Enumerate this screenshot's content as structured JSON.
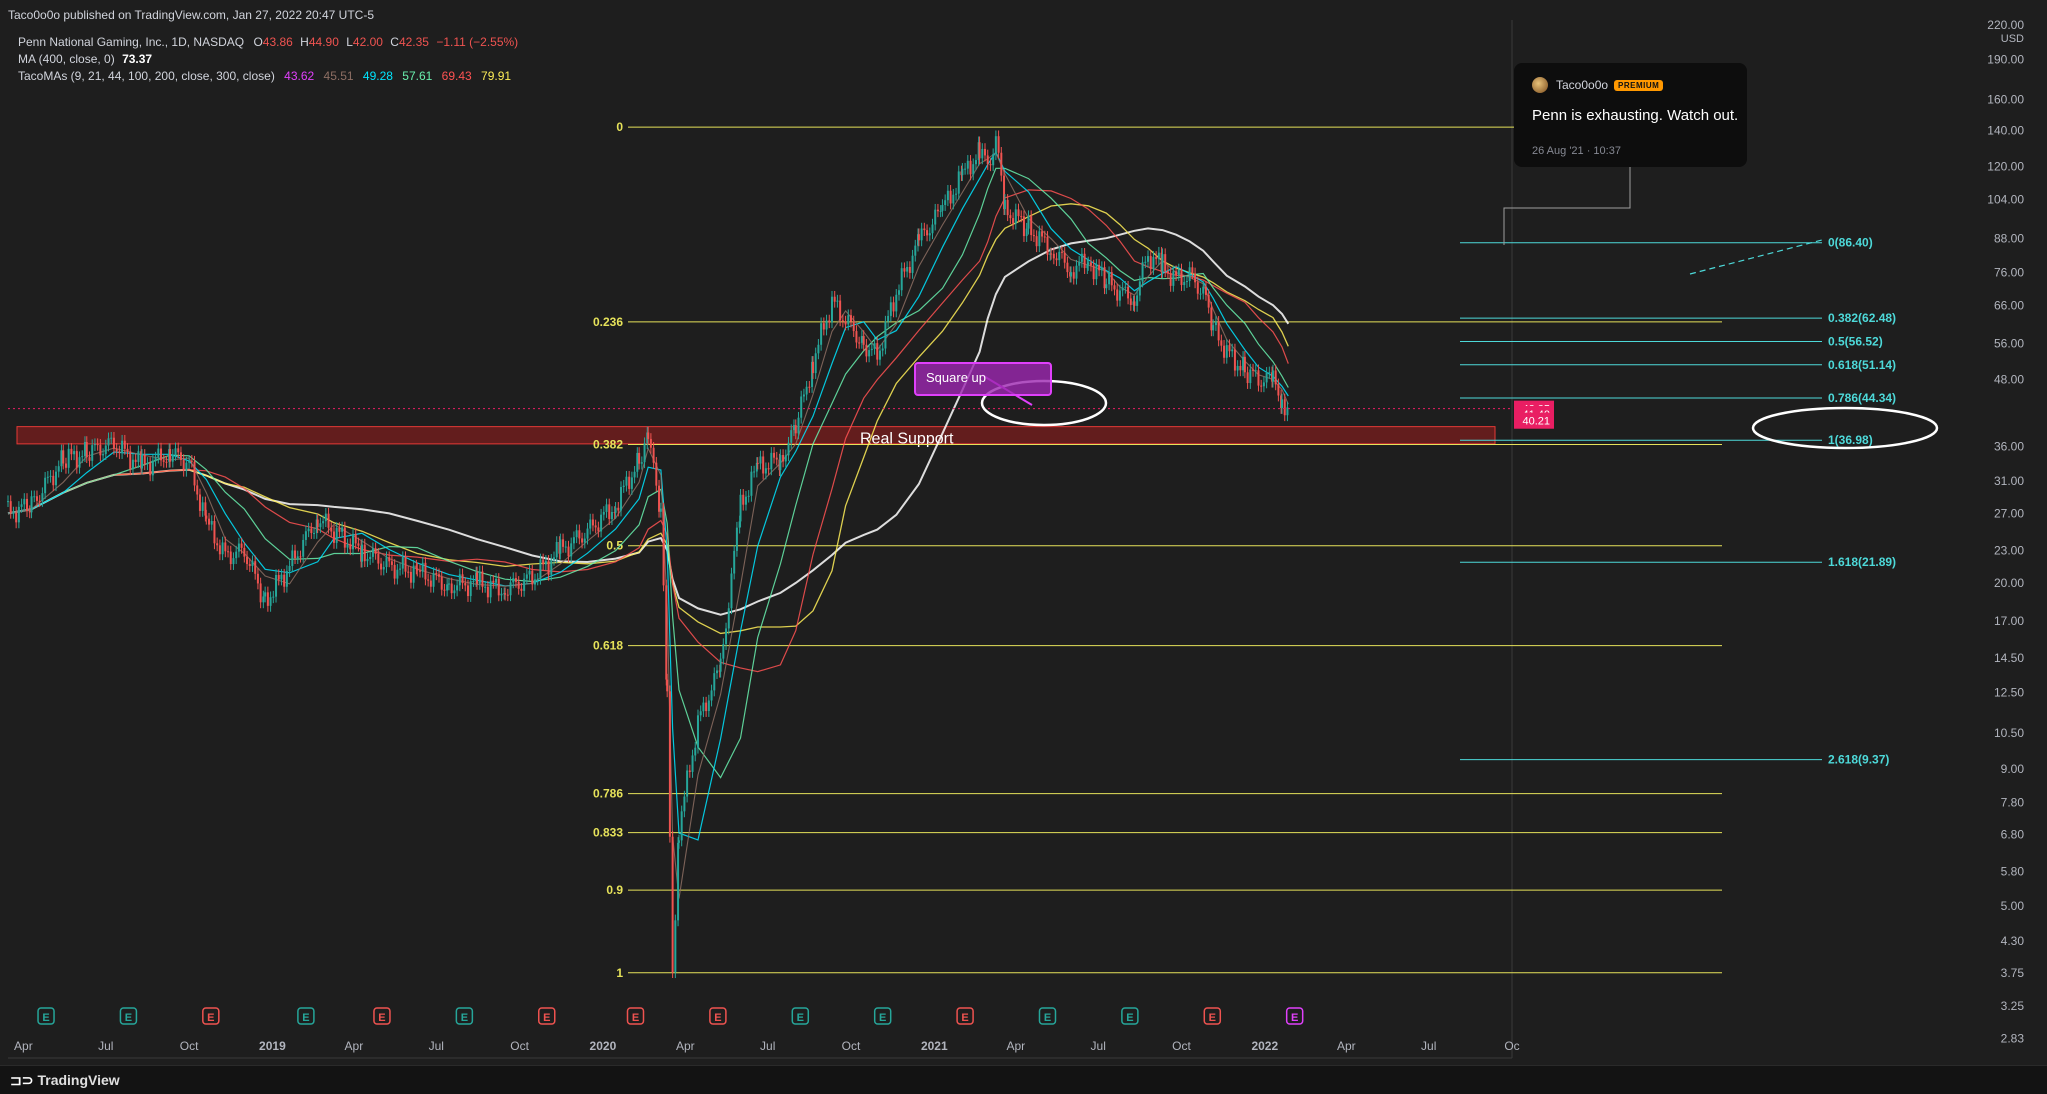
{
  "header": {
    "published": "Taco0o0o published on TradingView.com, Jan 27, 2022 20:47 UTC-5"
  },
  "legend": {
    "symbol": "Penn National Gaming, Inc., 1D, NASDAQ",
    "o_label": "O",
    "o_value": "43.86",
    "h_label": "H",
    "h_value": "44.90",
    "l_label": "L",
    "l_value": "42.00",
    "c_label": "C",
    "c_value": "42.35",
    "change": "−1.11 (−2.55%)",
    "ma_label": "MA (400, close, 0)",
    "ma_value": "73.37",
    "taco_label": "TacoMAs (9, 21, 44, 100, 200, close, 300, close)",
    "taco_values": [
      "43.62",
      "45.51",
      "49.28",
      "57.61",
      "69.43",
      "79.91"
    ]
  },
  "colors": {
    "background": "#1e1e1e",
    "fib_left": "#e6e25a",
    "fib_right": "#4dd9d9",
    "support_zone": "#b71c1c",
    "price_label": "#e91e63",
    "ma400": "#ffffff",
    "taco_mas": [
      "#e040fb",
      "#8d6e63",
      "#00e5ff",
      "#69f0ae",
      "#ff5252",
      "#ffee58"
    ]
  },
  "comment": {
    "user": "Taco0o0o",
    "badge": "PREMIUM",
    "message": "Penn is exhausting. Watch out.",
    "date": "26 Aug '21 · 10:37"
  },
  "annotations": {
    "square_up": "Square up",
    "real_support": "Real Support"
  },
  "price_labels": {
    "last": "42.35",
    "p2": "41.40",
    "p3": "40.21"
  },
  "footer": {
    "logo": "TradingView"
  },
  "chart_data": {
    "type": "candlestick",
    "symbol": "PENN",
    "interval": "1D",
    "y_scale": "log",
    "currency": "USD",
    "ylim": [
      2.6,
      225
    ],
    "xlim": [
      "2018-03-15",
      "2022-10-01"
    ],
    "y_ticks": [
      "220.00",
      "190.00",
      "160.00",
      "140.00",
      "120.00",
      "104.00",
      "88.00",
      "76.00",
      "66.00",
      "56.00",
      "48.00",
      "36.00",
      "31.00",
      "27.00",
      "23.00",
      "20.00",
      "17.00",
      "14.50",
      "12.50",
      "10.50",
      "9.00",
      "7.80",
      "6.80",
      "5.80",
      "5.00",
      "4.30",
      "3.75",
      "3.25",
      "2.83"
    ],
    "x_ticks": [
      {
        "label": "Apr",
        "date": "2018-04-01"
      },
      {
        "label": "Jul",
        "date": "2018-07-01"
      },
      {
        "label": "Oct",
        "date": "2018-10-01"
      },
      {
        "label": "2019",
        "date": "2019-01-01"
      },
      {
        "label": "Apr",
        "date": "2019-04-01"
      },
      {
        "label": "Jul",
        "date": "2019-07-01"
      },
      {
        "label": "Oct",
        "date": "2019-10-01"
      },
      {
        "label": "2020",
        "date": "2020-01-01"
      },
      {
        "label": "Apr",
        "date": "2020-04-01"
      },
      {
        "label": "Jul",
        "date": "2020-07-01"
      },
      {
        "label": "Oct",
        "date": "2020-10-01"
      },
      {
        "label": "2021",
        "date": "2021-01-01"
      },
      {
        "label": "Apr",
        "date": "2021-04-01"
      },
      {
        "label": "Jul",
        "date": "2021-07-01"
      },
      {
        "label": "Oct",
        "date": "2021-10-01"
      },
      {
        "label": "2022",
        "date": "2022-01-01"
      },
      {
        "label": "Apr",
        "date": "2022-04-01"
      },
      {
        "label": "Jul",
        "date": "2022-07-01"
      },
      {
        "label": "Oc",
        "date": "2022-10-01"
      }
    ],
    "price_series": [
      [
        "2018-03-15",
        27
      ],
      [
        "2018-04-10",
        28
      ],
      [
        "2018-05-15",
        34
      ],
      [
        "2018-06-10",
        35
      ],
      [
        "2018-07-10",
        36.5
      ],
      [
        "2018-08-10",
        33
      ],
      [
        "2018-09-10",
        35
      ],
      [
        "2018-10-01",
        33.5
      ],
      [
        "2018-10-20",
        26
      ],
      [
        "2018-11-10",
        22.5
      ],
      [
        "2018-12-01",
        23
      ],
      [
        "2018-12-24",
        18.5
      ],
      [
        "2019-01-20",
        21.5
      ],
      [
        "2019-02-20",
        26.5
      ],
      [
        "2019-03-10",
        25
      ],
      [
        "2019-04-10",
        23
      ],
      [
        "2019-05-10",
        21.5
      ],
      [
        "2019-06-10",
        21
      ],
      [
        "2019-07-15",
        19.8
      ],
      [
        "2019-08-15",
        20
      ],
      [
        "2019-09-15",
        19.5
      ],
      [
        "2019-10-15",
        20.5
      ],
      [
        "2019-11-15",
        23
      ],
      [
        "2019-12-15",
        25
      ],
      [
        "2020-01-15",
        28
      ],
      [
        "2020-02-10",
        34
      ],
      [
        "2020-02-20",
        37.5
      ],
      [
        "2020-03-05",
        27
      ],
      [
        "2020-03-12",
        12
      ],
      [
        "2020-03-18",
        3.8
      ],
      [
        "2020-03-25",
        7
      ],
      [
        "2020-04-15",
        11
      ],
      [
        "2020-05-10",
        14
      ],
      [
        "2020-06-01",
        28
      ],
      [
        "2020-06-20",
        33
      ],
      [
        "2020-07-15",
        34
      ],
      [
        "2020-08-01",
        39
      ],
      [
        "2020-08-20",
        52
      ],
      [
        "2020-09-10",
        67
      ],
      [
        "2020-09-25",
        62
      ],
      [
        "2020-10-15",
        56
      ],
      [
        "2020-10-30",
        53
      ],
      [
        "2020-11-20",
        70
      ],
      [
        "2020-12-15",
        87
      ],
      [
        "2021-01-10",
        100
      ],
      [
        "2021-02-01",
        115
      ],
      [
        "2021-02-20",
        128
      ],
      [
        "2021-03-01",
        120
      ],
      [
        "2021-03-10",
        135
      ],
      [
        "2021-03-20",
        100
      ],
      [
        "2021-04-15",
        92
      ],
      [
        "2021-05-10",
        84
      ],
      [
        "2021-06-01",
        77
      ],
      [
        "2021-06-20",
        80
      ],
      [
        "2021-07-10",
        73
      ],
      [
        "2021-07-25",
        70
      ],
      [
        "2021-08-10",
        68
      ],
      [
        "2021-08-25",
        82
      ],
      [
        "2021-09-10",
        78
      ],
      [
        "2021-09-25",
        74
      ],
      [
        "2021-10-10",
        75
      ],
      [
        "2021-10-25",
        70
      ],
      [
        "2021-11-05",
        60
      ],
      [
        "2021-11-20",
        54
      ],
      [
        "2021-12-10",
        50
      ],
      [
        "2021-12-25",
        48
      ],
      [
        "2022-01-10",
        48
      ],
      [
        "2022-01-20",
        44
      ],
      [
        "2022-01-27",
        42.35
      ]
    ],
    "moving_averages": [
      {
        "name": "MA (400, close, 0)",
        "value": "73.37"
      },
      {
        "name": "TacoMA 9",
        "value": "43.62"
      },
      {
        "name": "TacoMA 21",
        "value": "45.51"
      },
      {
        "name": "TacoMA 44",
        "value": "49.28"
      },
      {
        "name": "TacoMA 100",
        "value": "57.61"
      },
      {
        "name": "TacoMA 200",
        "value": "69.43"
      },
      {
        "name": "TacoMA 300",
        "value": "79.91"
      }
    ],
    "fib_retracement_left": [
      {
        "label": "0",
        "price": 142
      },
      {
        "label": "0.236",
        "price": 61.5
      },
      {
        "label": "0.382",
        "price": 36.3
      },
      {
        "label": "0.5",
        "price": 23.5
      },
      {
        "label": "0.618",
        "price": 15.3
      },
      {
        "label": "0.786",
        "price": 8.1
      },
      {
        "label": "0.833",
        "price": 6.85
      },
      {
        "label": "0.9",
        "price": 5.35
      },
      {
        "label": "1",
        "price": 3.75
      }
    ],
    "fib_extension_right": [
      {
        "label": "0(86.40)",
        "price": 86.4
      },
      {
        "label": "0.382(62.48)",
        "price": 62.48
      },
      {
        "label": "0.5(56.52)",
        "price": 56.52
      },
      {
        "label": "0.618(51.14)",
        "price": 51.14
      },
      {
        "label": "0.786(44.34)",
        "price": 44.34
      },
      {
        "label": "1(36.98)",
        "price": 36.98
      },
      {
        "label": "1.618(21.89)",
        "price": 21.89
      },
      {
        "label": "2.618(9.37)",
        "price": 9.37
      }
    ],
    "support_zone": {
      "low": 36.4,
      "high": 39.2,
      "label": "Real Support"
    },
    "earnings_markers": [
      {
        "date": "2018-04-26",
        "type": "positive"
      },
      {
        "date": "2018-07-26",
        "type": "positive"
      },
      {
        "date": "2018-10-25",
        "type": "negative"
      },
      {
        "date": "2019-02-07",
        "type": "positive"
      },
      {
        "date": "2019-05-02",
        "type": "negative"
      },
      {
        "date": "2019-08-01",
        "type": "positive"
      },
      {
        "date": "2019-10-31",
        "type": "negative"
      },
      {
        "date": "2020-02-06",
        "type": "negative"
      },
      {
        "date": "2020-05-07",
        "type": "negative"
      },
      {
        "date": "2020-08-06",
        "type": "positive"
      },
      {
        "date": "2020-11-05",
        "type": "positive"
      },
      {
        "date": "2021-02-04",
        "type": "negative"
      },
      {
        "date": "2021-05-06",
        "type": "positive"
      },
      {
        "date": "2021-08-05",
        "type": "positive"
      },
      {
        "date": "2021-11-04",
        "type": "negative"
      },
      {
        "date": "2022-02-03",
        "type": "upcoming"
      }
    ]
  }
}
